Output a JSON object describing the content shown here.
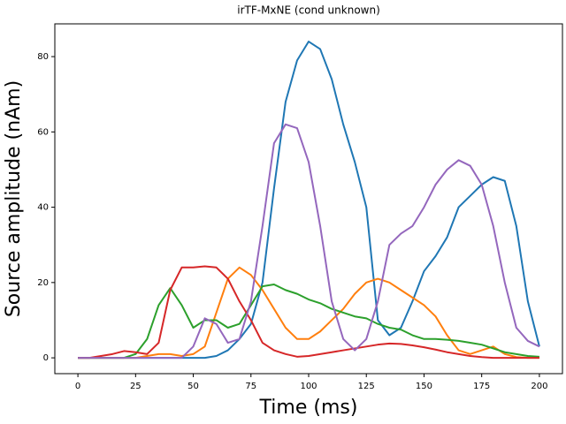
{
  "chart_data": {
    "type": "line",
    "title": "irTF-MxNE (cond unknown)",
    "x_label": "Time (ms)",
    "y_label": "Source amplitude (nAm)",
    "x": [
      0,
      5,
      10,
      15,
      20,
      25,
      30,
      35,
      40,
      45,
      50,
      55,
      60,
      65,
      70,
      75,
      80,
      85,
      90,
      95,
      100,
      105,
      110,
      115,
      120,
      125,
      130,
      135,
      140,
      145,
      150,
      155,
      160,
      165,
      170,
      175,
      180,
      185,
      190,
      195,
      200
    ],
    "series": [
      {
        "color": "#1f77b4",
        "values": [
          0,
          0,
          0,
          0,
          0,
          0,
          0,
          0,
          0,
          0,
          0,
          0,
          0.5,
          2,
          5,
          9,
          20,
          45,
          68,
          79,
          84,
          82,
          74,
          62,
          52,
          40,
          10,
          6,
          8,
          15,
          23,
          27,
          32,
          40,
          43,
          46,
          48,
          47,
          35,
          15,
          3
        ]
      },
      {
        "color": "#ff7f0e",
        "values": [
          0,
          0,
          0,
          0,
          0,
          0,
          0.5,
          1,
          1,
          0.5,
          1,
          3,
          12,
          21,
          24,
          22,
          18,
          13,
          8,
          5,
          5,
          7,
          10,
          13,
          17,
          20,
          21,
          20,
          18,
          16,
          14,
          11,
          6,
          2,
          1,
          2,
          3,
          1,
          0.2,
          0,
          0
        ]
      },
      {
        "color": "#2ca02c",
        "values": [
          0,
          0,
          0,
          0,
          0,
          1,
          5,
          14,
          18.5,
          14,
          8,
          10,
          10,
          8,
          9,
          14,
          19,
          19.5,
          18,
          17,
          15.5,
          14.5,
          13,
          12,
          11,
          10.5,
          9,
          8,
          7.5,
          6,
          5,
          5,
          4.8,
          4.5,
          4,
          3.5,
          2.5,
          1.5,
          1,
          0.5,
          0.3
        ]
      },
      {
        "color": "#d62728",
        "values": [
          0,
          0,
          0.5,
          1,
          1.8,
          1.5,
          1,
          4,
          18,
          24,
          24,
          24.3,
          24,
          21,
          15,
          10,
          4,
          2,
          1,
          0.3,
          0.5,
          1,
          1.5,
          2,
          2.5,
          3,
          3.5,
          3.8,
          3.7,
          3.3,
          2.8,
          2.2,
          1.5,
          1,
          0.5,
          0.2,
          0,
          0,
          0,
          0,
          0
        ]
      },
      {
        "color": "#9467bd",
        "values": [
          0,
          0,
          0,
          0,
          0,
          0,
          0,
          0,
          0,
          0,
          3,
          10.5,
          9,
          4,
          5,
          15,
          35,
          57,
          62,
          61,
          52,
          35,
          15,
          5,
          2,
          5,
          15,
          30,
          33,
          35,
          40,
          46,
          50,
          52.5,
          51,
          46,
          35,
          20,
          8,
          4.5,
          3
        ]
      }
    ],
    "xlim": [
      -10,
      210
    ],
    "ylim": [
      -4.2,
      88.7
    ],
    "xticks": [
      0,
      25,
      50,
      75,
      100,
      125,
      150,
      175,
      200
    ],
    "yticks": [
      0,
      20,
      40,
      60,
      80
    ]
  }
}
